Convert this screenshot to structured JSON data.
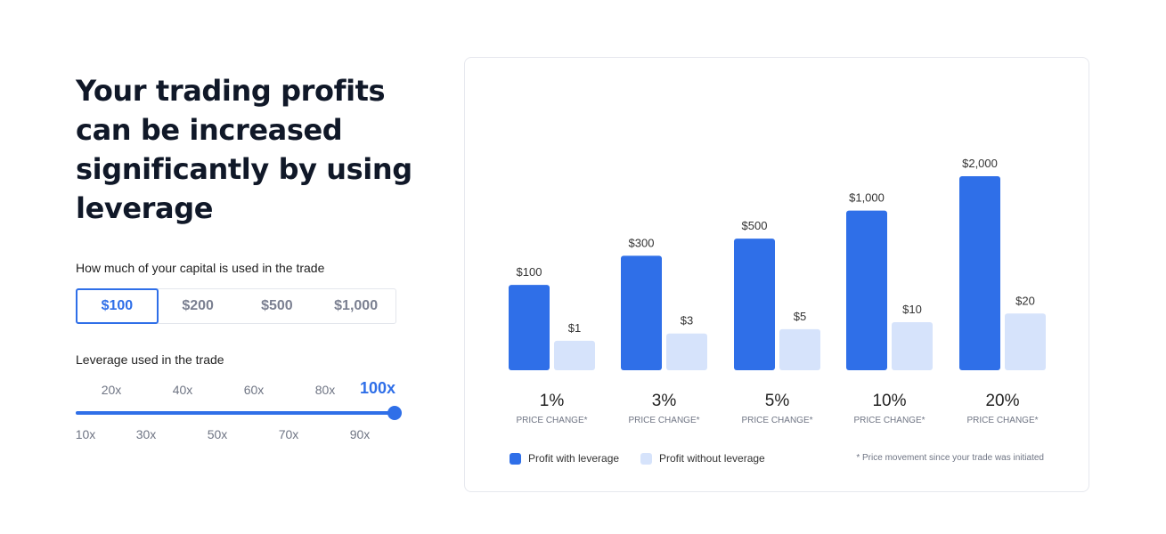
{
  "headline": "Your trading profits can be increased significantly by using leverage",
  "capital": {
    "label": "How much of your capital is used in the trade",
    "options": [
      "$100",
      "$200",
      "$500",
      "$1,000"
    ],
    "selected": "$100"
  },
  "leverage": {
    "label": "Leverage used in the trade",
    "top_ticks": [
      "20x",
      "40x",
      "60x",
      "80x",
      "100x"
    ],
    "bottom_ticks": [
      "10x",
      "30x",
      "50x",
      "70x",
      "90x"
    ],
    "selected": "100x",
    "fraction": 1.0
  },
  "colors": {
    "accent": "#2f6fe8",
    "light": "#d6e3fb"
  },
  "chart_data": {
    "type": "bar",
    "categories": [
      "1%",
      "3%",
      "5%",
      "10%",
      "20%"
    ],
    "category_sublabel": "PRICE CHANGE*",
    "series": [
      {
        "name": "Profit with leverage",
        "values": [
          100,
          300,
          500,
          1000,
          2000
        ],
        "labels": [
          "$100",
          "$300",
          "$500",
          "$1,000",
          "$2,000"
        ],
        "color": "#2f6fe8"
      },
      {
        "name": "Profit without leverage",
        "values": [
          1,
          3,
          5,
          10,
          20
        ],
        "labels": [
          "$1",
          "$3",
          "$5",
          "$10",
          "$20"
        ],
        "color": "#d6e3fb"
      }
    ],
    "footnote": "* Price movement since your trade was initiated"
  }
}
